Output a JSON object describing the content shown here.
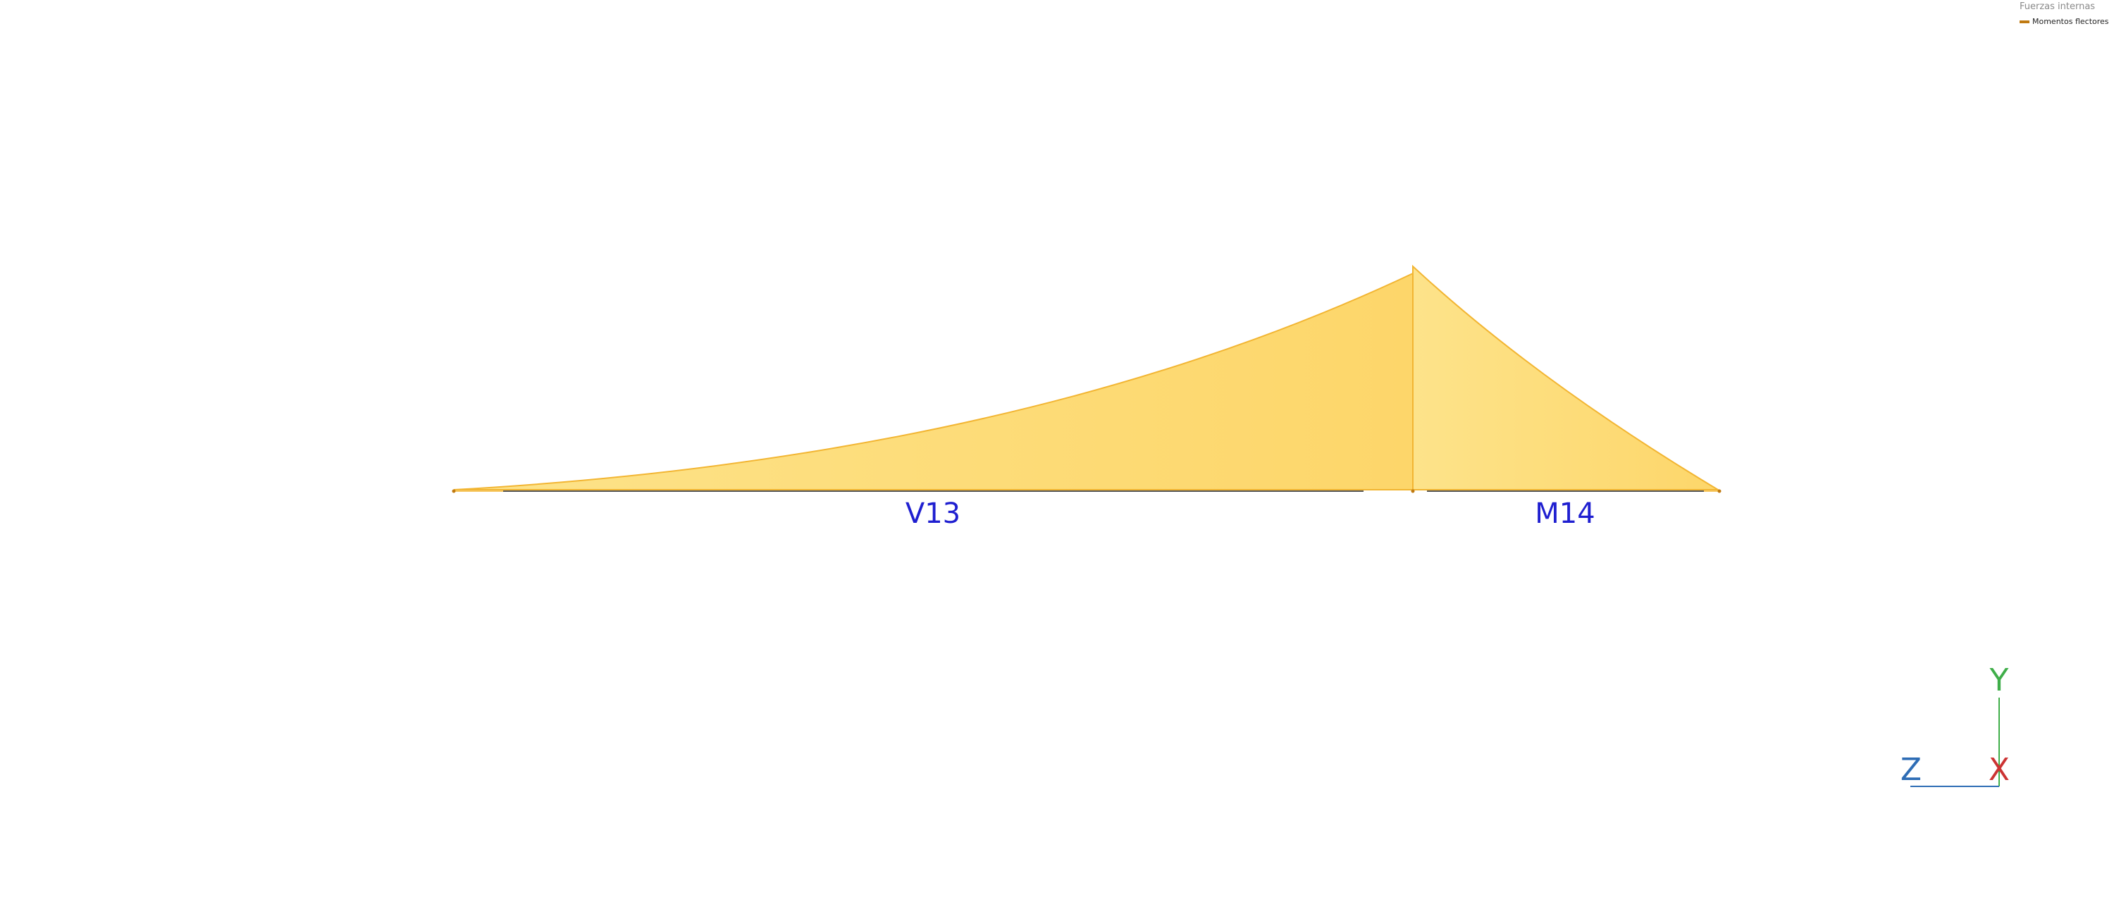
{
  "legend": {
    "title": "Fuerzas internas",
    "items": [
      {
        "label": "Momentos flectores",
        "color": "#c07a10"
      }
    ]
  },
  "members": [
    {
      "label": "V13",
      "color": "#1f1fd0"
    },
    {
      "label": "M14",
      "color": "#1f1fd0"
    }
  ],
  "axes": {
    "y": {
      "label": "Y",
      "color": "#3fae49"
    },
    "z": {
      "label": "Z",
      "color": "#2e6db5"
    },
    "x": {
      "label": "X",
      "color": "#cc3333"
    }
  },
  "diagram": {
    "fill_color": "#fdd96a",
    "edge_color": "#f2b532",
    "beam_color": "#555555"
  }
}
